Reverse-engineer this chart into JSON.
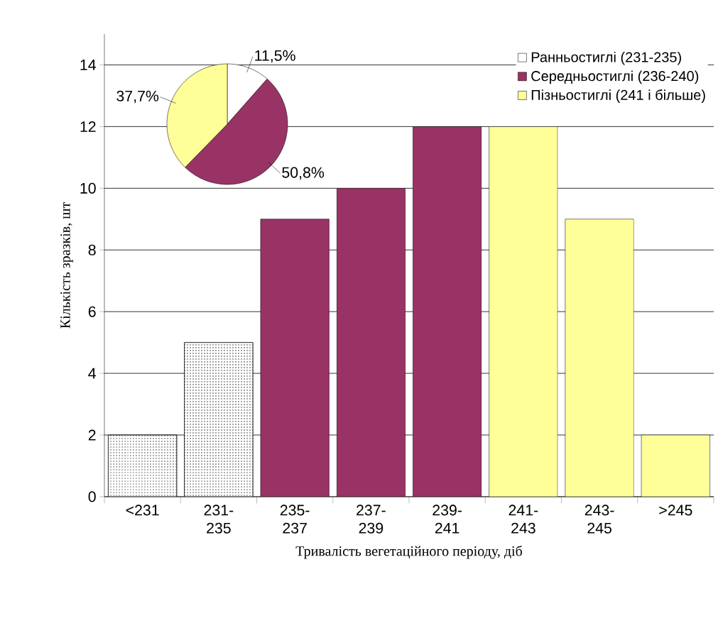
{
  "chart_data": [
    {
      "type": "bar",
      "categories": [
        "<231",
        "231-235",
        "235-237",
        "237-239",
        "239-241",
        "241-243",
        "243-245",
        ">245"
      ],
      "values": [
        2,
        5,
        9,
        10,
        12,
        12,
        9,
        2
      ],
      "colors": [
        "#ffffff",
        "#ffffff",
        "#993366",
        "#993366",
        "#993366",
        "#ffff99",
        "#ffff99",
        "#ffff99"
      ],
      "xlabel": "Тривалість вегетаційного періоду, діб",
      "ylabel": "Кількість зразків, шт",
      "ylim": [
        0,
        15
      ],
      "yticks": [
        0,
        2,
        4,
        6,
        8,
        10,
        12,
        14
      ],
      "grid": "y"
    },
    {
      "type": "pie",
      "categories": [
        "Ранньостиглі (231-235)",
        "Середньостиглі (236-240)",
        "Пізньостиглі (241 і більше)"
      ],
      "values": [
        11.5,
        50.8,
        37.7
      ],
      "value_labels": [
        "11,5%",
        "50,8%",
        "37,7%"
      ],
      "colors": [
        "#ffffff",
        "#993366",
        "#ffff99"
      ],
      "legend": "top right"
    }
  ]
}
